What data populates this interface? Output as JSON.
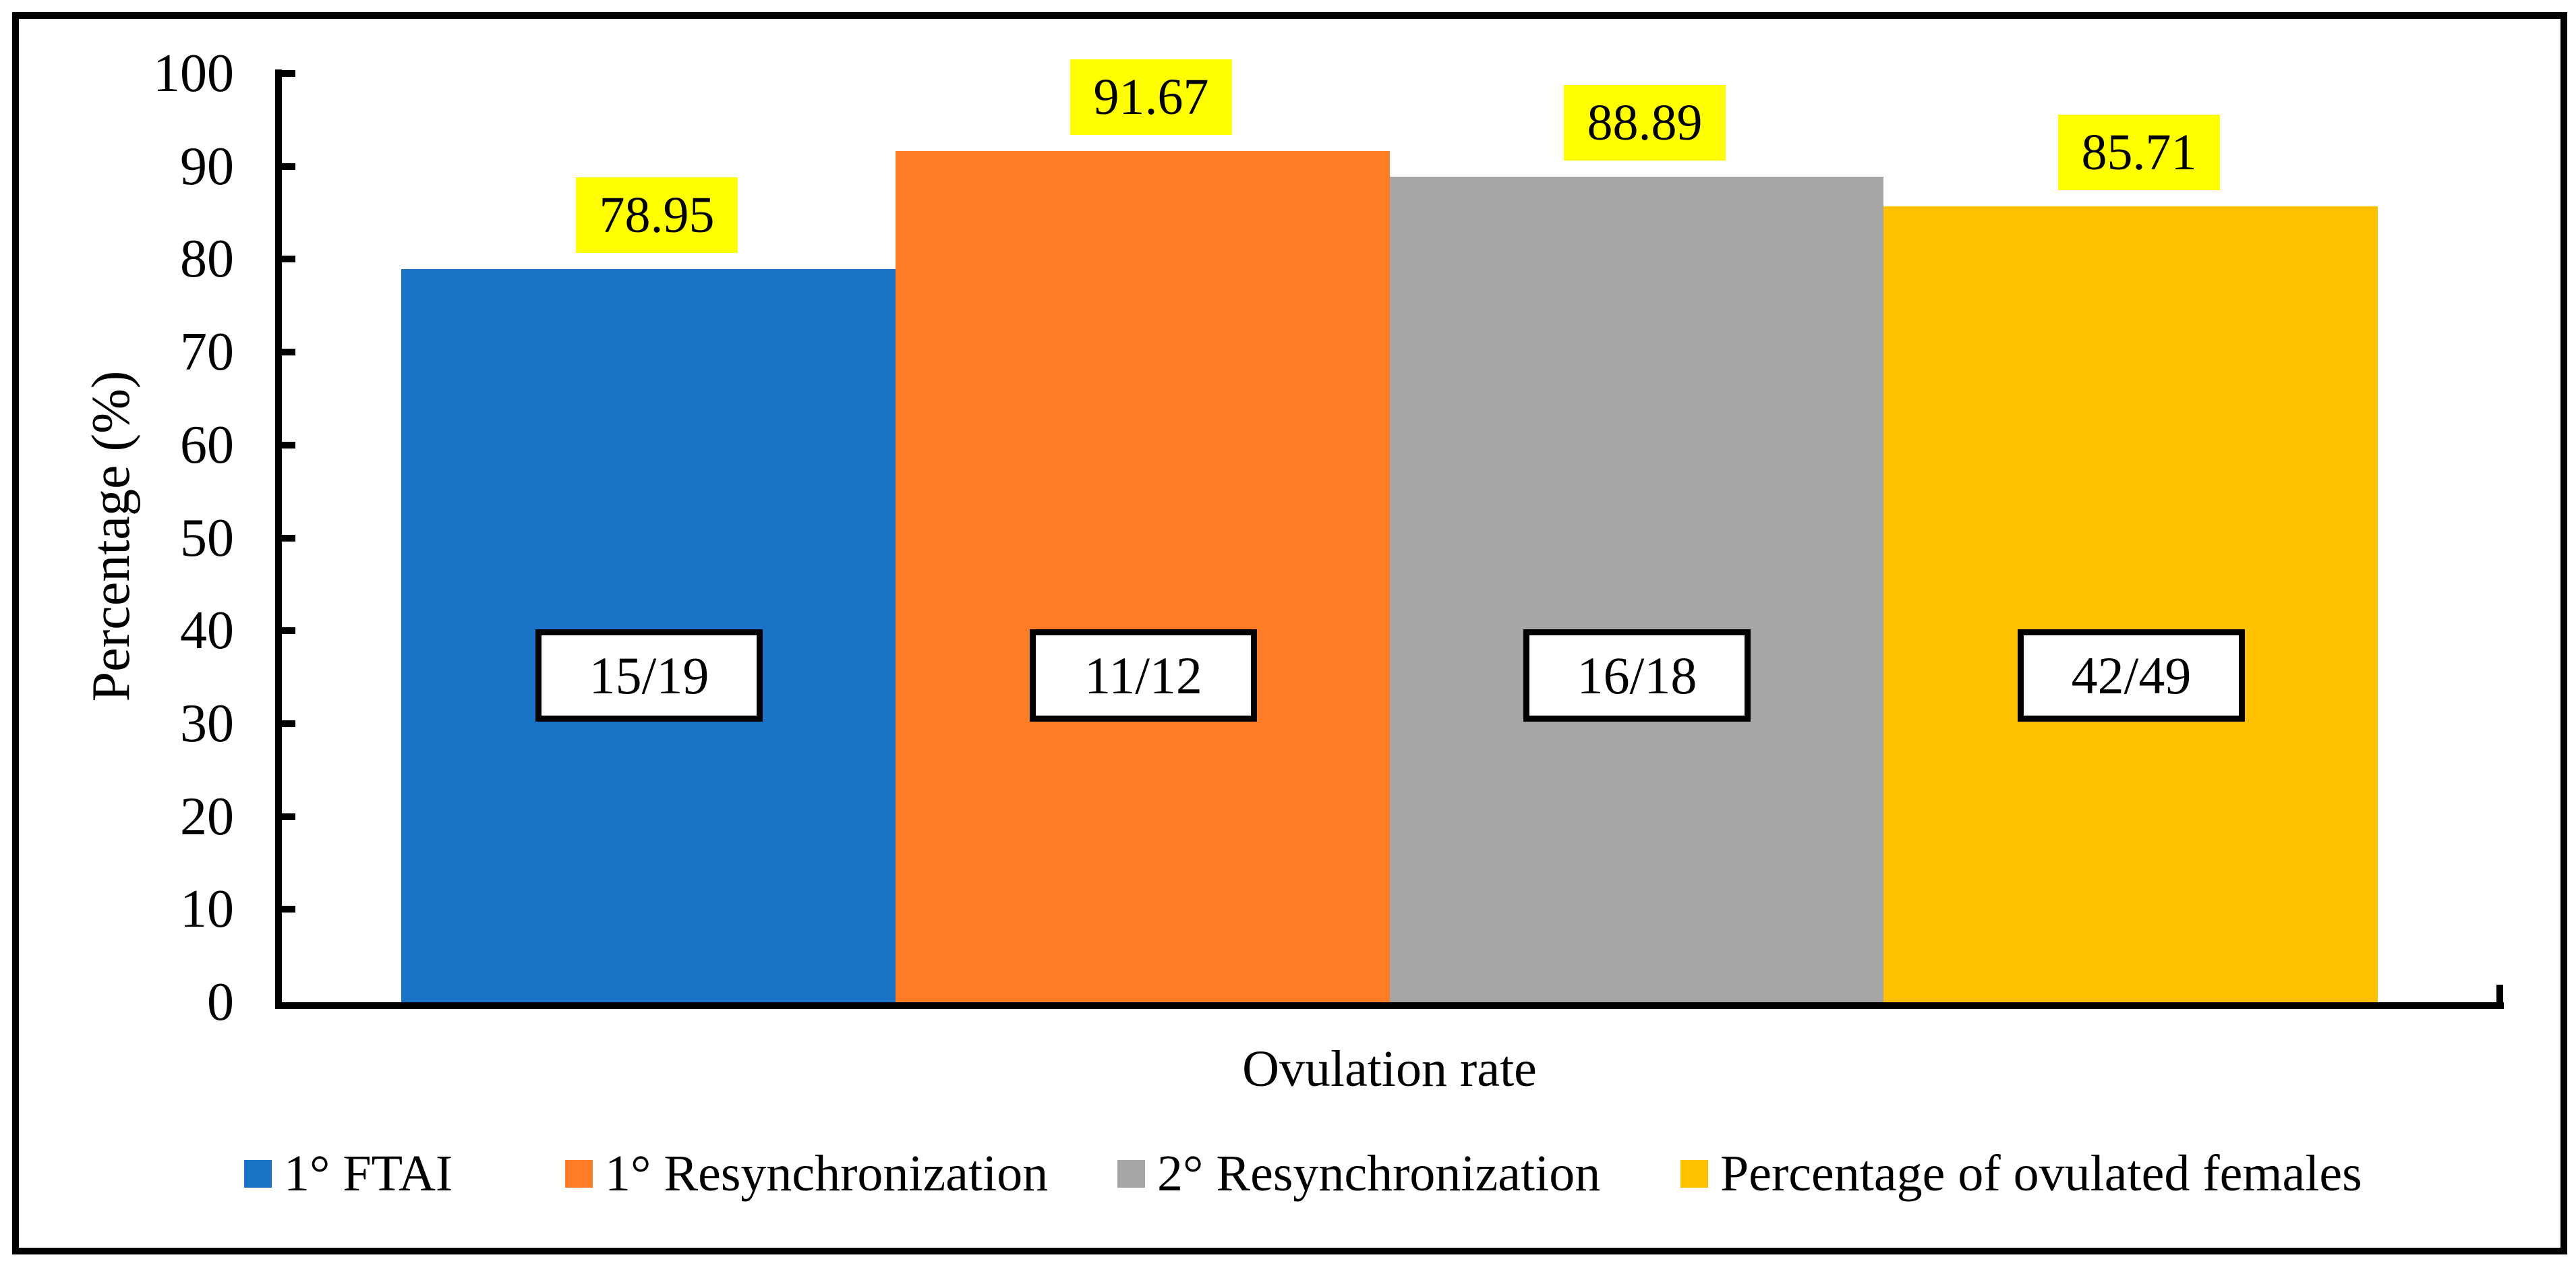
{
  "chart_data": {
    "type": "bar",
    "title": "",
    "categories": [
      "Ovulation rate"
    ],
    "xlabel": "Ovulation rate",
    "ylabel": "Percentage (%)",
    "ylim": [
      0,
      100
    ],
    "grid": false,
    "legend_position": "bottom",
    "y_ticks": [
      "0",
      "10",
      "20",
      "30",
      "40",
      "50",
      "60",
      "70",
      "80",
      "90",
      "100"
    ],
    "value_label_bg": "#FFFF00",
    "series": [
      {
        "name": "1° FTAI",
        "value": 78.95,
        "value_label": "78.95",
        "fraction": "15/19",
        "color": "#1973C6"
      },
      {
        "name": "1° Resynchronization",
        "value": 91.67,
        "value_label": "91.67",
        "fraction": "11/12",
        "color": "#FD7D27"
      },
      {
        "name": "2° Resynchronization",
        "value": 88.89,
        "value_label": "88.89",
        "fraction": "16/18",
        "color": "#A6A6A6"
      },
      {
        "name": "Percentage of ovulated females",
        "value": 85.71,
        "value_label": "85.71",
        "fraction": "42/49",
        "color": "#FFC000"
      }
    ],
    "axis_color": "#000000",
    "background_color": "#FFFFFF"
  },
  "legend": {
    "items": [
      {
        "label": "1° FTAI",
        "color": "#1973C6"
      },
      {
        "label": "1° Resynchronization",
        "color": "#FD7D27"
      },
      {
        "label": "2° Resynchronization",
        "color": "#A6A6A6"
      },
      {
        "label": "Percentage of ovulated females",
        "color": "#FFC000"
      }
    ]
  }
}
